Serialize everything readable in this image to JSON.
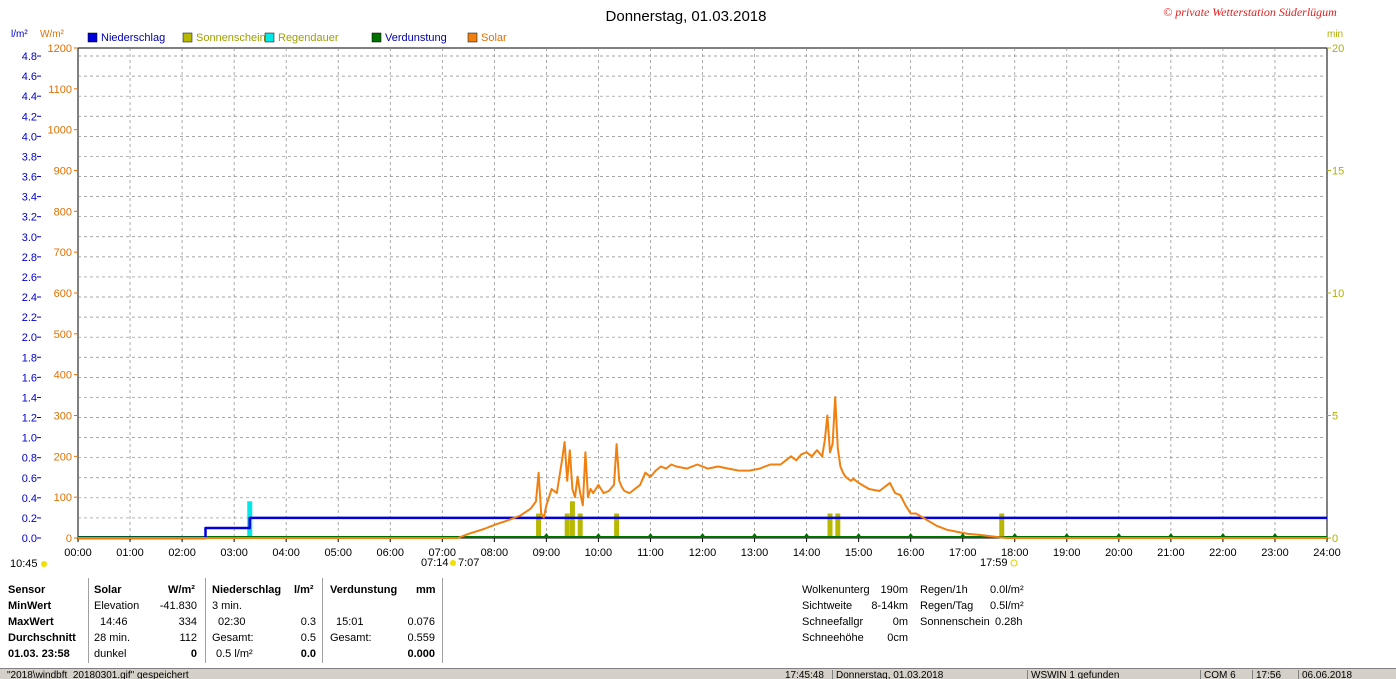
{
  "title": "Donnerstag, 01.03.2018",
  "copyright": "© private Wetterstation Süderlügum",
  "colors": {
    "niederschlag": "#0000dd",
    "sonnenschein": "#b8b800",
    "regendauer": "#00e8e8",
    "verdunstung": "#007000",
    "solar": "#f08010",
    "axis_left_blue": "#0000cc",
    "axis_left_orange": "#e07000",
    "axis_right": "#b0b000",
    "grid": "#888888"
  },
  "legend": [
    {
      "label": "Niederschlag",
      "color": "#0000dd",
      "text_color": "#0000aa"
    },
    {
      "label": "Sonnenschein",
      "color": "#b8b800",
      "text_color": "#a0a000"
    },
    {
      "label": "Regendauer",
      "color": "#00e8e8",
      "text_color": "#a0a000"
    },
    {
      "label": "Verdunstung",
      "color": "#007000",
      "text_color": "#0000aa"
    },
    {
      "label": "Solar",
      "color": "#f08010",
      "text_color": "#e07000"
    }
  ],
  "chart_data": {
    "type": "line",
    "title": "Donnerstag, 01.03.2018",
    "x_ticks": [
      "00:00",
      "01:00",
      "02:00",
      "03:00",
      "04:00",
      "05:00",
      "06:00",
      "07:00",
      "08:00",
      "09:00",
      "10:00",
      "11:00",
      "12:00",
      "13:00",
      "14:00",
      "15:00",
      "16:00",
      "17:00",
      "18:00",
      "19:00",
      "20:00",
      "21:00",
      "22:00",
      "23:00",
      "24:00"
    ],
    "xlim_hours": [
      0,
      24
    ],
    "axis_left_precip": {
      "unit": "l/m²",
      "ticks": [
        "0.0",
        "0.2",
        "0.4",
        "0.6",
        "0.8",
        "1.0",
        "1.2",
        "1.4",
        "1.6",
        "1.8",
        "2.0",
        "2.2",
        "2.4",
        "2.6",
        "2.8",
        "3.0",
        "3.2",
        "3.4",
        "3.6",
        "3.8",
        "4.0",
        "4.2",
        "4.4",
        "4.6",
        "4.8"
      ],
      "ylim": [
        0,
        4.88
      ]
    },
    "axis_left_solar": {
      "unit": "W/m²",
      "ticks": [
        "0",
        "100",
        "200",
        "300",
        "400",
        "500",
        "600",
        "700",
        "800",
        "900",
        "1000",
        "1100",
        "1200"
      ],
      "ylim": [
        0,
        1200
      ]
    },
    "axis_right_minutes": {
      "unit": "min",
      "ticks": [
        "0",
        "5",
        "10",
        "15",
        "20"
      ],
      "ylim": [
        0,
        20
      ]
    },
    "grid": true,
    "sun_markers": {
      "sunrise": "07:14",
      "sunset": "17:59",
      "daylength": "10:45",
      "noon_mark": "7:07"
    },
    "series": [
      {
        "name": "Niederschlag",
        "axis": "precip",
        "kind": "step",
        "x": [
          0,
          2.45,
          2.45,
          3.3,
          3.3,
          24
        ],
        "y": [
          0,
          0,
          0.1,
          0.1,
          0.2,
          0.2
        ]
      },
      {
        "name": "Solar",
        "axis": "solar",
        "kind": "line",
        "x": [
          0,
          7.3,
          7.5,
          7.8,
          8.0,
          8.3,
          8.5,
          8.7,
          8.8,
          8.85,
          8.9,
          8.95,
          9.0,
          9.1,
          9.2,
          9.3,
          9.35,
          9.4,
          9.45,
          9.5,
          9.55,
          9.6,
          9.65,
          9.7,
          9.75,
          9.8,
          9.85,
          9.9,
          10.0,
          10.1,
          10.2,
          10.3,
          10.35,
          10.4,
          10.45,
          10.5,
          10.6,
          10.7,
          10.8,
          10.9,
          11.0,
          11.1,
          11.2,
          11.3,
          11.4,
          11.5,
          11.7,
          11.9,
          12.1,
          12.3,
          12.5,
          12.7,
          12.9,
          13.1,
          13.3,
          13.5,
          13.7,
          13.8,
          13.9,
          14.0,
          14.1,
          14.2,
          14.3,
          14.35,
          14.4,
          14.45,
          14.5,
          14.55,
          14.6,
          14.65,
          14.7,
          14.75,
          14.8,
          14.85,
          14.9,
          15.0,
          15.2,
          15.4,
          15.6,
          15.7,
          15.8,
          15.9,
          16.0,
          16.1,
          16.3,
          16.5,
          16.6,
          16.7,
          16.9,
          17.1,
          17.3,
          17.5,
          17.7,
          17.85,
          17.9,
          18.0,
          24
        ],
        "y": [
          0,
          0,
          10,
          22,
          32,
          45,
          55,
          72,
          90,
          160,
          60,
          50,
          80,
          120,
          110,
          190,
          235,
          140,
          215,
          120,
          100,
          150,
          110,
          80,
          210,
          100,
          120,
          110,
          130,
          110,
          115,
          130,
          230,
          140,
          125,
          115,
          110,
          120,
          130,
          160,
          150,
          165,
          175,
          170,
          180,
          175,
          170,
          180,
          170,
          175,
          170,
          165,
          165,
          170,
          180,
          180,
          200,
          190,
          205,
          210,
          200,
          215,
          200,
          240,
          300,
          210,
          230,
          345,
          220,
          175,
          160,
          150,
          145,
          140,
          145,
          135,
          120,
          115,
          135,
          110,
          105,
          80,
          60,
          60,
          45,
          30,
          25,
          20,
          15,
          10,
          8,
          5,
          2,
          0,
          0,
          0,
          0
        ]
      },
      {
        "name": "Sonnenschein",
        "axis": "minutes",
        "kind": "bars",
        "x": [
          8.85,
          9.4,
          9.5,
          9.65,
          10.35,
          14.45,
          14.6,
          17.75
        ],
        "y": [
          1.0,
          1.0,
          1.5,
          1.0,
          1.0,
          1.0,
          1.0,
          1.0
        ]
      },
      {
        "name": "Regendauer",
        "axis": "minutes",
        "kind": "bars",
        "x": [
          3.3
        ],
        "y": [
          1.5
        ]
      },
      {
        "name": "Verdunstung",
        "axis": "minutes",
        "kind": "markers",
        "x": [
          9.0,
          10.0,
          11.0,
          12.0,
          13.0,
          14.0,
          15.0,
          16.0,
          17.0,
          18.0,
          19.0,
          20.0,
          21.0,
          22.0,
          23.0
        ],
        "y": [
          0,
          0,
          0,
          0,
          0,
          0,
          0,
          0,
          0,
          0,
          0,
          0,
          0,
          0,
          0
        ]
      }
    ]
  },
  "table": {
    "sensor_col": {
      "header": "Sensor",
      "rows": [
        "MinWert",
        "MaxWert",
        "Durchschnitt",
        "01.03.  23:58"
      ]
    },
    "solar": {
      "header": "Solar",
      "unit": "W/m²",
      "rows": [
        [
          "Elevation",
          "-41.830"
        ],
        [
          "14:46",
          "334"
        ],
        [
          "28 min.",
          "112"
        ],
        [
          "dunkel",
          "0"
        ]
      ]
    },
    "niederschlag": {
      "header": "Niederschlag",
      "unit": "l/m²",
      "rows": [
        [
          "3 min.",
          ""
        ],
        [
          "02:30",
          "0.3"
        ],
        [
          "Gesamt:",
          "0.5"
        ],
        [
          "0.5 l/m²",
          "0.0"
        ]
      ]
    },
    "verdunstung": {
      "header": "Verdunstung",
      "unit": "mm",
      "rows": [
        [
          "",
          ""
        ],
        [
          "15:01",
          "0.076"
        ],
        [
          "Gesamt:",
          "0.559"
        ],
        [
          "",
          "0.000"
        ]
      ]
    }
  },
  "info_left": [
    {
      "label": "Wolkenunterg",
      "value": "190m"
    },
    {
      "label": "Sichtweite",
      "value": "8-14km"
    },
    {
      "label": "Schneefallgr",
      "value": "0m"
    },
    {
      "label": "Schneehöhe",
      "value": "0cm"
    }
  ],
  "info_right": [
    {
      "label": "Regen/1h",
      "value": "0.0l/m²"
    },
    {
      "label": "Regen/Tag",
      "value": "0.5l/m²"
    },
    {
      "label": "Sonnenschein",
      "value": "0.28h"
    }
  ],
  "statusbar": {
    "message": "\"2018\\windbft_20180301.gif\"  gespeichert",
    "time": "17:45:48",
    "date": "Donnerstag, 01.03.2018",
    "connection": "WSWIN 1 gefunden",
    "port": "COM 6",
    "clock": "17:56",
    "today": "06.06.2018"
  }
}
